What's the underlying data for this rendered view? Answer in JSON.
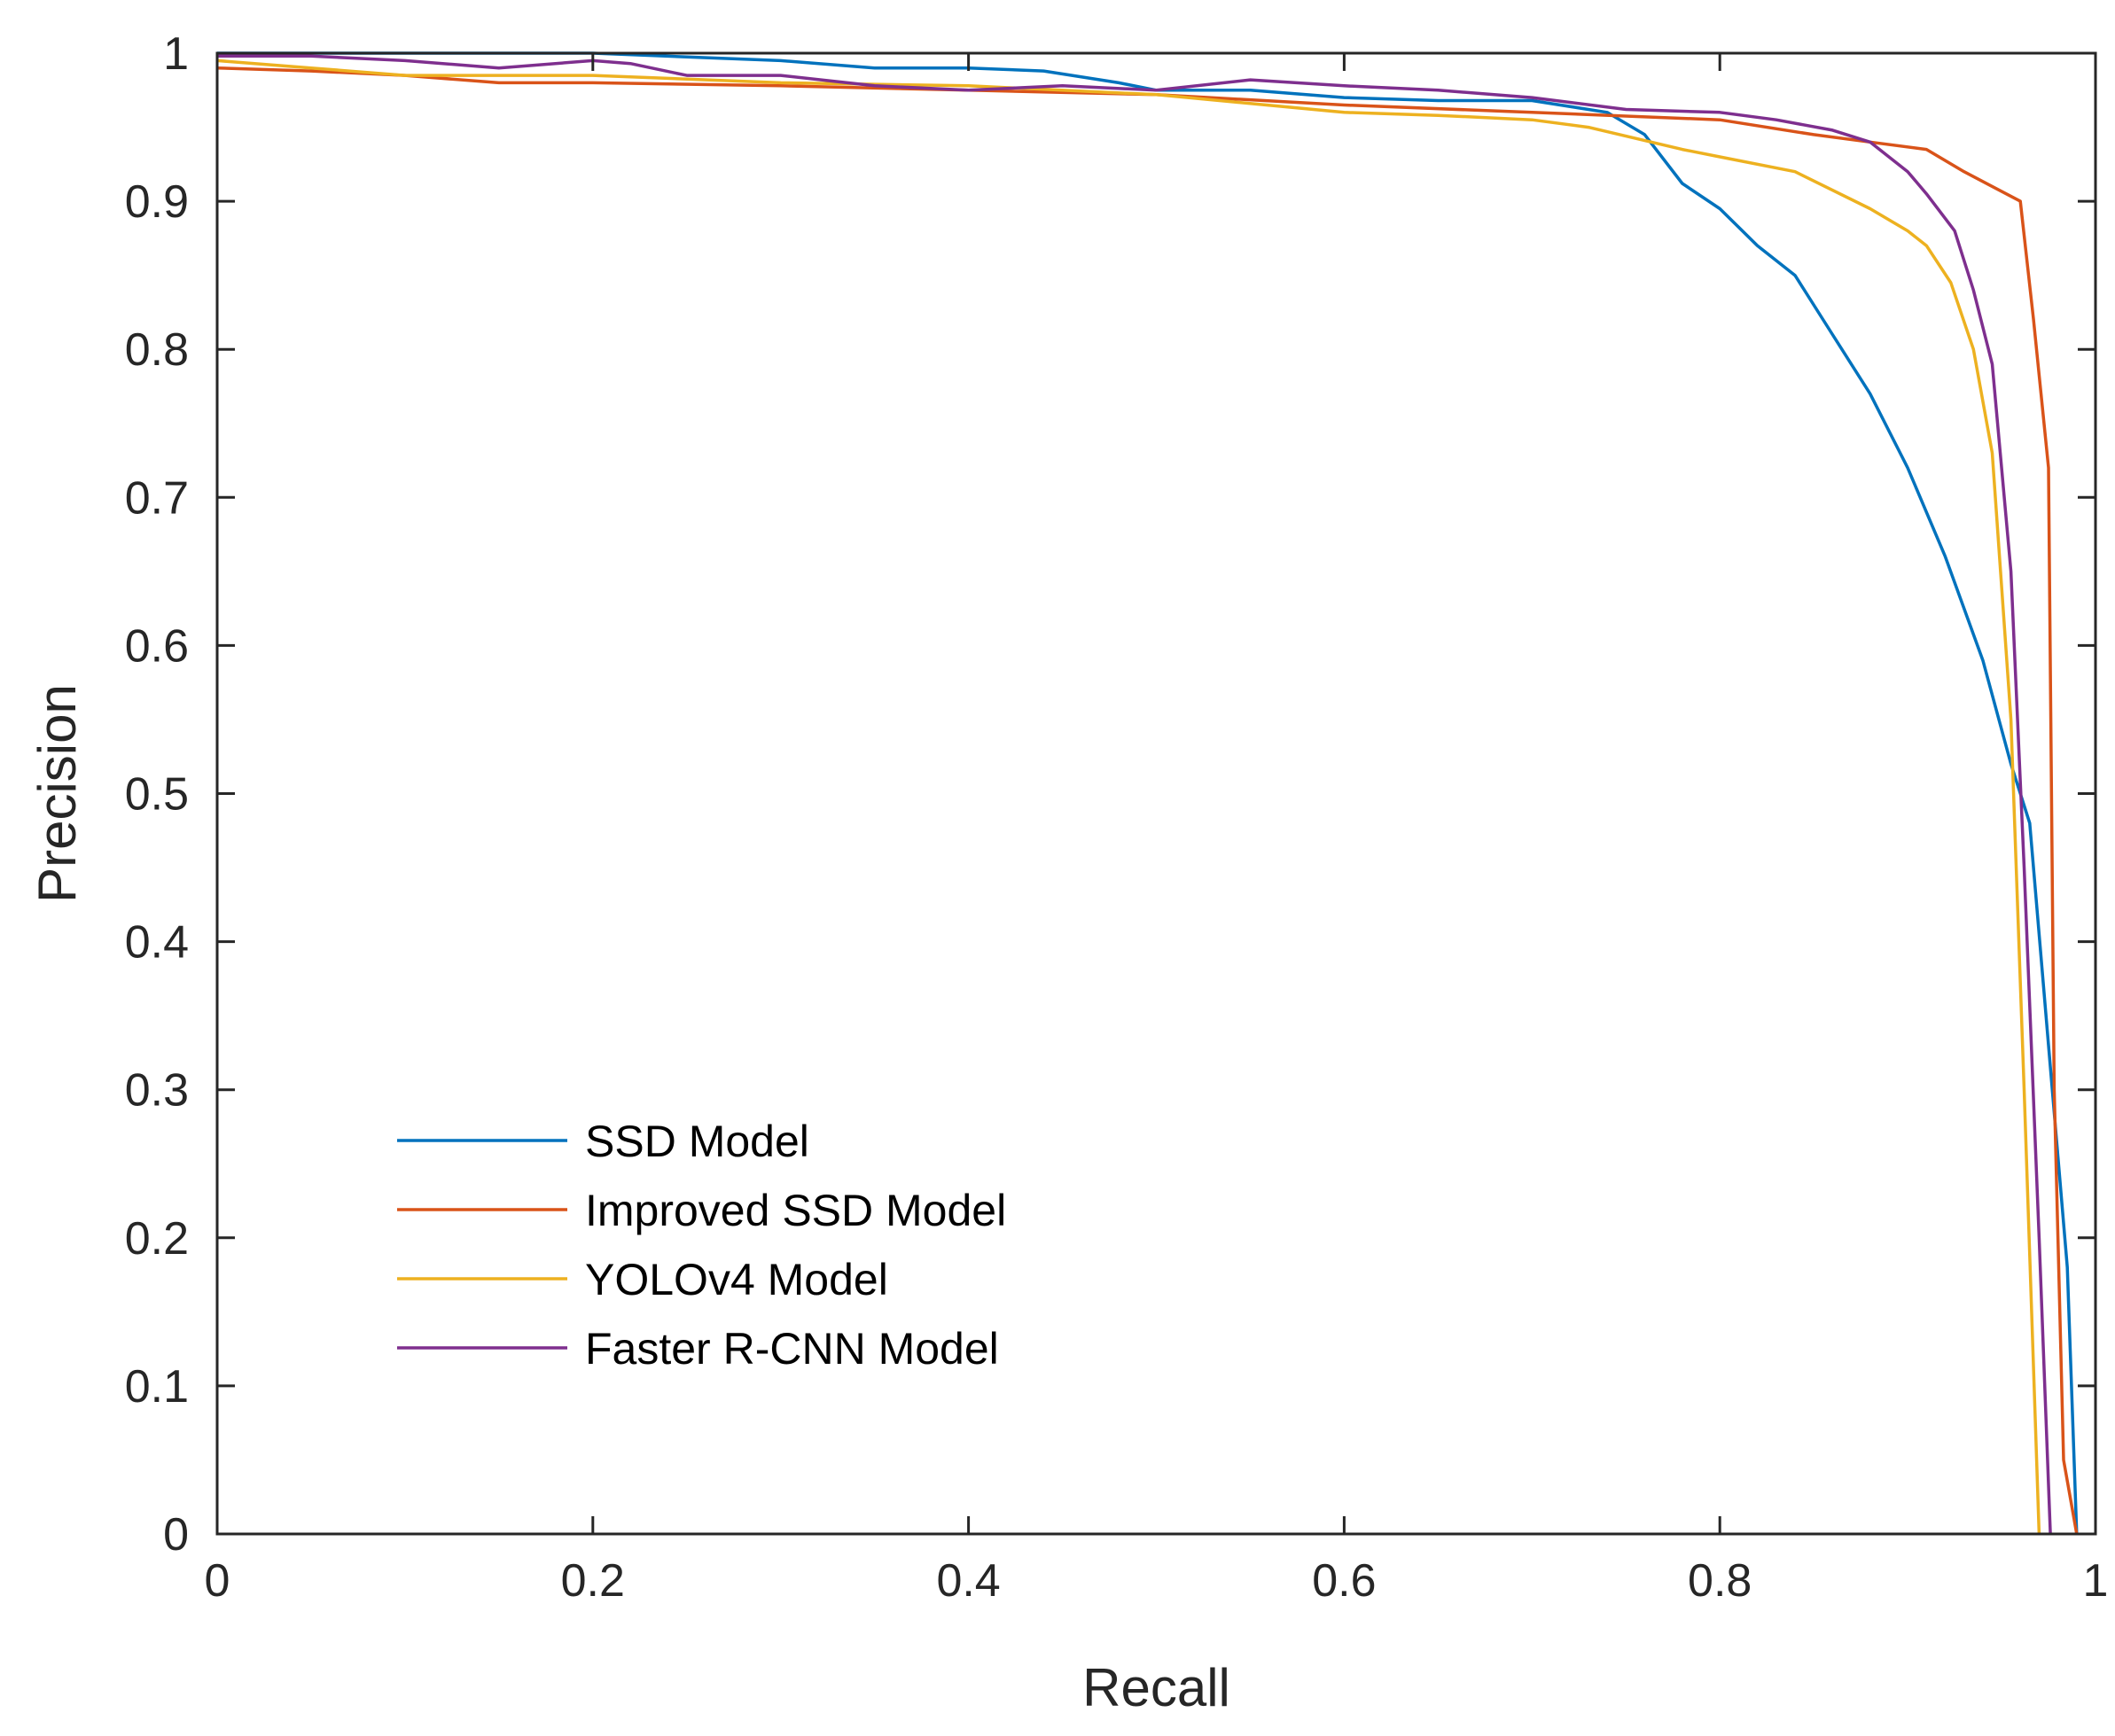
{
  "chart_data": {
    "type": "line",
    "title": "",
    "xlabel": "Recall",
    "ylabel": "Precision",
    "xlim": [
      0,
      1
    ],
    "ylim": [
      0,
      1
    ],
    "xticks": [
      0,
      0.2,
      0.4,
      0.6,
      0.8,
      1
    ],
    "xtick_labels": [
      "0",
      "0.2",
      "0.4",
      "0.6",
      "0.8",
      "1"
    ],
    "yticks": [
      0,
      0.1,
      0.2,
      0.3,
      0.4,
      0.5,
      0.6,
      0.7,
      0.8,
      0.9,
      1
    ],
    "ytick_labels": [
      "0",
      "0.1",
      "0.2",
      "0.3",
      "0.4",
      "0.5",
      "0.6",
      "0.7",
      "0.8",
      "0.9",
      "1"
    ],
    "grid": false,
    "legend_position": "bottom-left",
    "series": [
      {
        "name": "SSD Model",
        "color": "#0072BD",
        "x": [
          0,
          0.05,
          0.1,
          0.2,
          0.3,
          0.35,
          0.4,
          0.44,
          0.48,
          0.5,
          0.55,
          0.6,
          0.65,
          0.7,
          0.74,
          0.76,
          0.78,
          0.8,
          0.82,
          0.84,
          0.86,
          0.88,
          0.9,
          0.92,
          0.94,
          0.955,
          0.965,
          0.975,
          0.985,
          0.99
        ],
        "y": [
          1,
          1,
          1,
          1,
          0.995,
          0.99,
          0.99,
          0.988,
          0.98,
          0.975,
          0.975,
          0.97,
          0.968,
          0.968,
          0.96,
          0.945,
          0.912,
          0.895,
          0.87,
          0.85,
          0.81,
          0.77,
          0.72,
          0.66,
          0.59,
          0.52,
          0.48,
          0.33,
          0.18,
          0
        ]
      },
      {
        "name": "Improved SSD Model",
        "color": "#D95319",
        "x": [
          0,
          0.05,
          0.1,
          0.15,
          0.2,
          0.3,
          0.4,
          0.5,
          0.6,
          0.7,
          0.8,
          0.85,
          0.88,
          0.91,
          0.93,
          0.945,
          0.96,
          0.967,
          0.975,
          0.978,
          0.983,
          0.99
        ],
        "y": [
          0.99,
          0.988,
          0.985,
          0.98,
          0.98,
          0.978,
          0.975,
          0.972,
          0.965,
          0.96,
          0.955,
          0.945,
          0.94,
          0.935,
          0.92,
          0.91,
          0.9,
          0.82,
          0.72,
          0.3,
          0.05,
          0
        ]
      },
      {
        "name": "YOLOv4 Model",
        "color": "#EDB120",
        "x": [
          0,
          0.05,
          0.1,
          0.15,
          0.2,
          0.3,
          0.4,
          0.5,
          0.6,
          0.65,
          0.7,
          0.73,
          0.78,
          0.8,
          0.84,
          0.88,
          0.9,
          0.91,
          0.923,
          0.935,
          0.945,
          0.955,
          0.962,
          0.97
        ],
        "y": [
          0.995,
          0.99,
          0.985,
          0.985,
          0.985,
          0.98,
          0.978,
          0.972,
          0.96,
          0.958,
          0.955,
          0.95,
          0.935,
          0.93,
          0.92,
          0.895,
          0.88,
          0.87,
          0.845,
          0.8,
          0.73,
          0.55,
          0.3,
          0
        ]
      },
      {
        "name": "Faster R-CNN Model",
        "color": "#7E2F8E",
        "x": [
          0,
          0.05,
          0.1,
          0.15,
          0.2,
          0.22,
          0.25,
          0.3,
          0.35,
          0.4,
          0.45,
          0.5,
          0.55,
          0.6,
          0.65,
          0.7,
          0.75,
          0.8,
          0.83,
          0.86,
          0.88,
          0.9,
          0.91,
          0.925,
          0.935,
          0.945,
          0.955,
          0.962,
          0.97,
          0.976
        ],
        "y": [
          0.998,
          0.998,
          0.995,
          0.99,
          0.995,
          0.993,
          0.985,
          0.985,
          0.978,
          0.975,
          0.978,
          0.975,
          0.982,
          0.978,
          0.975,
          0.97,
          0.962,
          0.96,
          0.955,
          0.948,
          0.94,
          0.92,
          0.905,
          0.88,
          0.84,
          0.79,
          0.65,
          0.45,
          0.2,
          0
        ]
      }
    ]
  }
}
